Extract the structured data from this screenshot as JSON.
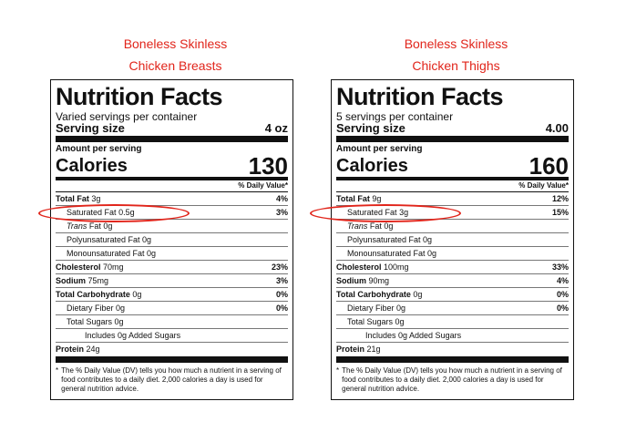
{
  "colors": {
    "heading": "#e1251b",
    "highlight_ring": "#e1251b"
  },
  "labels": [
    {
      "heading_line1": "Boneless Skinless",
      "heading_line2": "Chicken Breasts",
      "title": "Nutrition Facts",
      "servings": "Varied servings per container",
      "serving_size_label": "Serving size",
      "serving_size_value": "4 oz",
      "amount_per_serving": "Amount per serving",
      "calories_label": "Calories",
      "calories_value": "130",
      "dv_header": "% Daily Value*",
      "rows": [
        {
          "name": "Total Fat",
          "amount": "3g",
          "dv": "4%"
        },
        {
          "name": "Saturated Fat",
          "amount": "0.5g",
          "dv": "3%"
        },
        {
          "name": "Trans",
          "name_suffix": "Fat 0g",
          "dv": ""
        },
        {
          "name": "Polyunsaturated Fat 0g",
          "dv": ""
        },
        {
          "name": "Monounsaturated Fat 0g",
          "dv": ""
        },
        {
          "name": "Cholesterol",
          "amount": "70mg",
          "dv": "23%"
        },
        {
          "name": "Sodium",
          "amount": "75mg",
          "dv": "3%"
        },
        {
          "name": "Total Carbohydrate",
          "amount": "0g",
          "dv": "0%"
        },
        {
          "name": "Dietary Fiber 0g",
          "dv": "0%"
        },
        {
          "name": "Total Sugars 0g",
          "dv": ""
        },
        {
          "name": "Includes 0g Added Sugars",
          "dv": ""
        },
        {
          "name": "Protein",
          "amount": "24g",
          "dv": ""
        }
      ],
      "footnote": "The % Daily Value (DV) tells you how much a nutrient in a serving of food contributes to a daily diet. 2,000 calories a day is used for general nutrition advice."
    },
    {
      "heading_line1": "Boneless Skinless",
      "heading_line2": "Chicken Thighs",
      "title": "Nutrition Facts",
      "servings": "5 servings per container",
      "serving_size_label": "Serving size",
      "serving_size_value": "4.00",
      "amount_per_serving": "Amount per serving",
      "calories_label": "Calories",
      "calories_value": "160",
      "dv_header": "% Daily Value*",
      "rows": [
        {
          "name": "Total Fat",
          "amount": "9g",
          "dv": "12%"
        },
        {
          "name": "Saturated Fat",
          "amount": "3g",
          "dv": "15%"
        },
        {
          "name": "Trans",
          "name_suffix": "Fat 0g",
          "dv": ""
        },
        {
          "name": "Polyunsaturated Fat 0g",
          "dv": ""
        },
        {
          "name": "Monounsaturated Fat 0g",
          "dv": ""
        },
        {
          "name": "Cholesterol",
          "amount": "100mg",
          "dv": "33%"
        },
        {
          "name": "Sodium",
          "amount": "90mg",
          "dv": "4%"
        },
        {
          "name": "Total Carbohydrate",
          "amount": "0g",
          "dv": "0%"
        },
        {
          "name": "Dietary Fiber 0g",
          "dv": "0%"
        },
        {
          "name": "Total Sugars 0g",
          "dv": ""
        },
        {
          "name": "Includes 0g Added Sugars",
          "dv": ""
        },
        {
          "name": "Protein",
          "amount": "21g",
          "dv": ""
        }
      ],
      "footnote": "The % Daily Value (DV) tells you how much a nutrient in a serving of food contributes to a daily diet. 2,000 calories a day is used for general nutrition advice."
    }
  ]
}
